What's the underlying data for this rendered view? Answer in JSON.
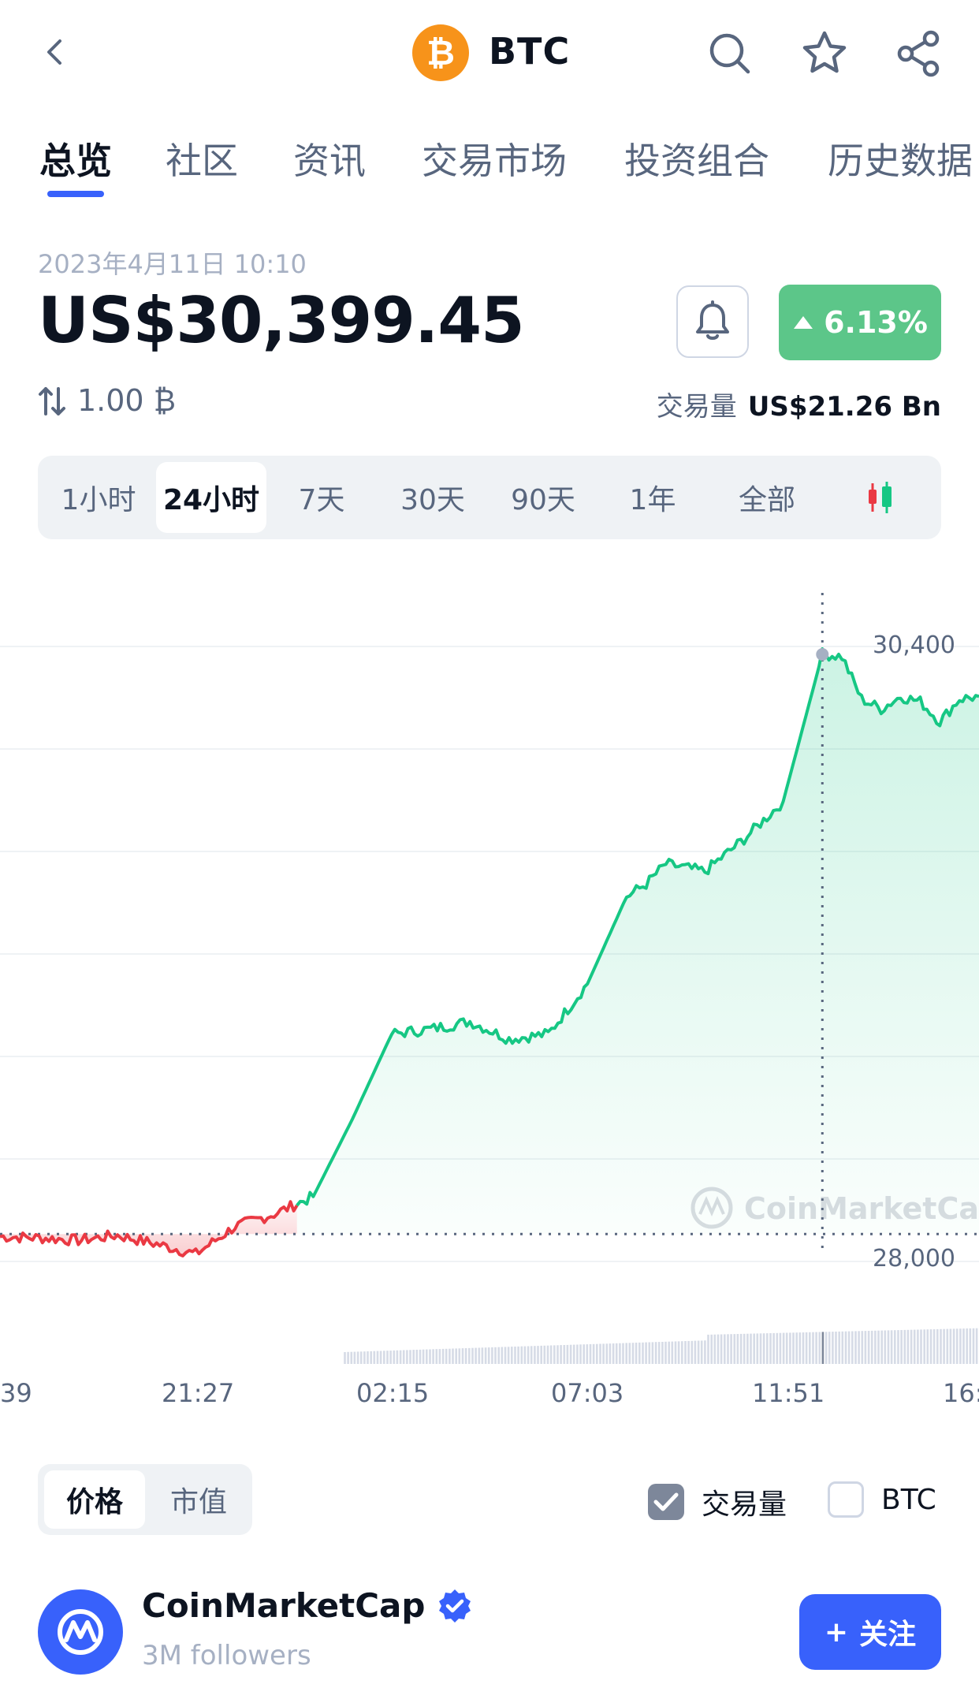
{
  "header": {
    "coin_symbol": "BTC",
    "coin_logo_glyph": "₿",
    "icons": [
      "back-chevron-icon",
      "search-icon",
      "star-icon",
      "share-icon"
    ]
  },
  "tabs": [
    {
      "label": "总览",
      "active": true
    },
    {
      "label": "社区"
    },
    {
      "label": "资讯"
    },
    {
      "label": "交易市场"
    },
    {
      "label": "投资组合"
    },
    {
      "label": "历史数据"
    }
  ],
  "price": {
    "timestamp": "2023年4月11日 10:10",
    "value": "US$30,399.45",
    "change": "6.13%",
    "change_color": "#5cc689",
    "conversion": "1.00 ₿",
    "volume_label": "交易量",
    "volume_value": "US$21.26 Bn"
  },
  "ranges": {
    "items": [
      "1小时",
      "24小时",
      "7天",
      "30天",
      "90天",
      "1年",
      "全部"
    ],
    "selected": "24小时",
    "candle_icon": "candlestick-icon"
  },
  "chart_data": {
    "type": "line",
    "series": [
      {
        "x": [
          0,
          4,
          8,
          12,
          16,
          20,
          24,
          28,
          32,
          36,
          40,
          44,
          48,
          52,
          56,
          60,
          64,
          66,
          68,
          72,
          76,
          80,
          84,
          86,
          88,
          90,
          92,
          94,
          96,
          98,
          100
        ],
        "values": [
          28090,
          28085,
          28075,
          28095,
          28060,
          28020,
          28130,
          28180,
          28250,
          28560,
          28900,
          28920,
          28950,
          28880,
          28900,
          29100,
          29450,
          29500,
          29580,
          29550,
          29680,
          29830,
          30420,
          30410,
          30240,
          30200,
          30250,
          30230,
          30150,
          30240,
          30250
        ],
        "colors": {
          "up": "#16c784",
          "down": "#ea3943"
        }
      }
    ],
    "baseline": 28100,
    "ylim": [
      28000,
      30450
    ],
    "y_ticks": [
      "30,400",
      "28,000"
    ],
    "x_ticks": [
      "39",
      "21:27",
      "02:15",
      "07:03",
      "11:51",
      "16:"
    ],
    "hover_x": 84,
    "grid": true,
    "watermark": "CoinMarketCap",
    "volume_bars": true
  },
  "controls": {
    "seg": [
      {
        "label": "价格",
        "selected": true
      },
      {
        "label": "市值"
      }
    ],
    "volume_check": {
      "label": "交易量",
      "checked": true
    },
    "btc_check": {
      "label": "BTC",
      "checked": false
    }
  },
  "profile": {
    "name": "CoinMarketCap",
    "followers": "3M followers",
    "follow_label": "关注",
    "follow_plus": "+"
  }
}
